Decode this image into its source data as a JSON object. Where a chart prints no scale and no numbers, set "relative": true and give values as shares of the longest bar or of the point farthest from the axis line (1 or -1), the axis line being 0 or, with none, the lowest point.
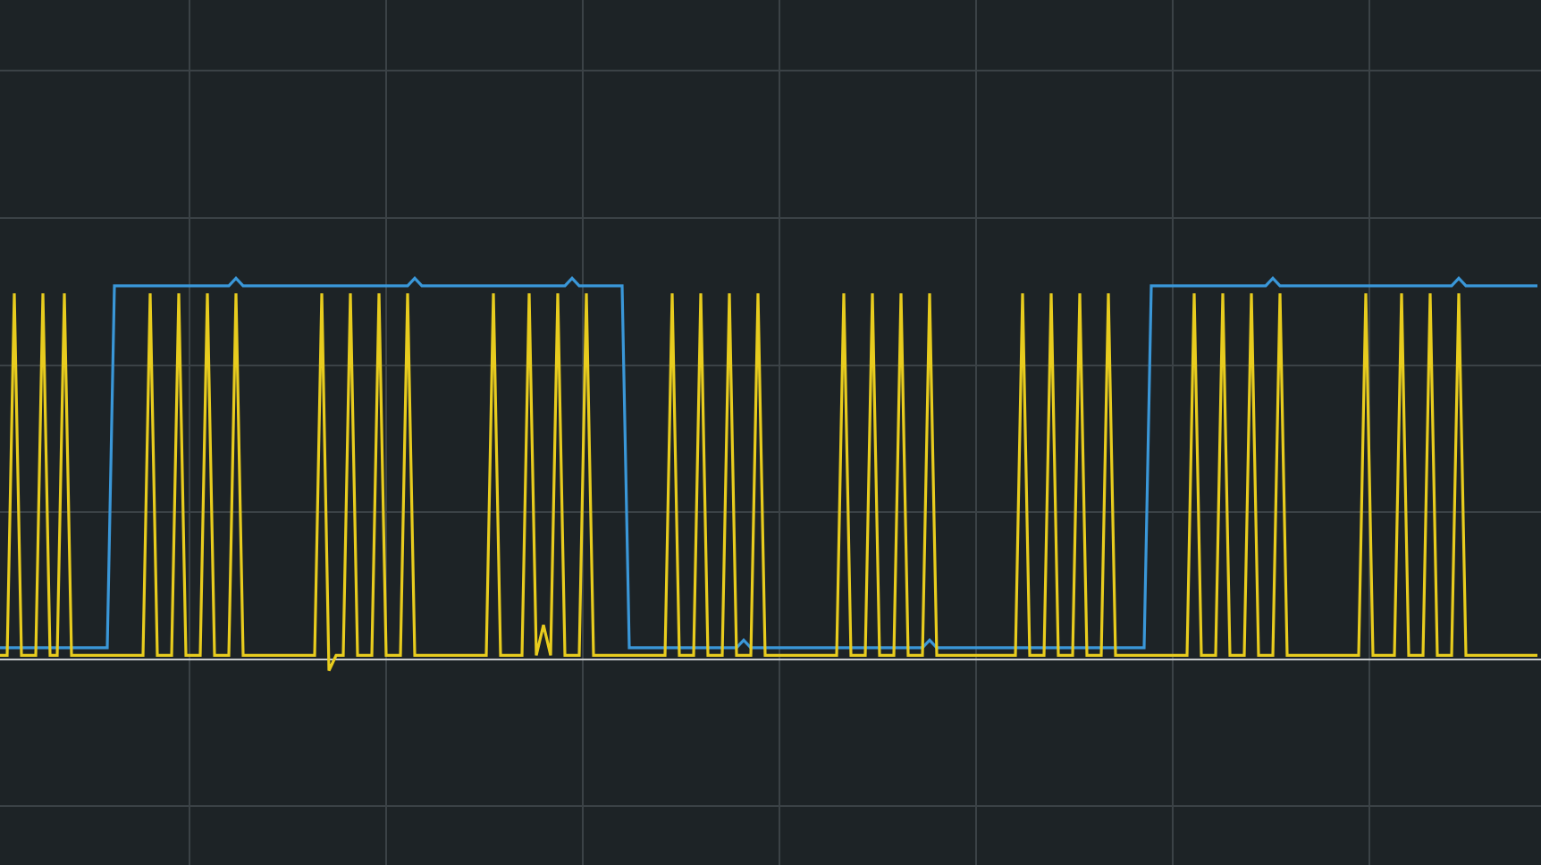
{
  "chart_data": {
    "type": "line",
    "relative": true,
    "grid": true,
    "tick_labels": false,
    "marker": "none",
    "line_style": "solid",
    "categories": [
      null,
      null,
      null,
      null,
      null,
      null,
      null,
      null,
      null,
      null,
      null,
      null,
      null,
      null,
      null,
      null,
      null,
      null,
      null,
      null,
      null,
      null,
      null,
      null,
      null,
      null,
      null,
      null,
      null,
      null,
      null,
      null,
      null,
      null,
      null,
      null,
      null,
      null,
      null,
      null,
      null,
      null,
      null,
      null,
      null,
      null,
      null,
      null,
      null,
      null,
      null,
      null,
      null,
      null,
      null,
      null,
      null,
      null,
      null,
      null,
      null,
      null,
      null,
      null,
      null,
      null,
      null,
      null,
      null,
      null,
      null,
      null,
      null,
      null,
      null,
      null,
      null,
      null,
      null,
      null,
      null,
      null,
      null,
      null,
      null,
      null,
      null,
      null,
      null,
      null,
      null,
      null,
      null,
      null,
      null,
      null,
      null,
      null,
      null,
      null,
      null,
      null,
      null,
      null,
      null,
      null,
      null,
      null,
      null,
      null,
      null,
      null,
      null,
      null,
      null,
      null,
      null,
      null,
      null,
      null,
      null,
      null,
      null,
      null,
      null,
      null,
      null,
      null,
      null,
      null,
      null,
      null,
      null,
      null,
      null,
      null,
      null,
      null,
      null,
      null,
      null,
      null,
      null,
      null,
      null,
      null,
      null,
      null,
      null,
      null,
      null,
      null,
      null,
      null,
      null,
      null,
      null,
      null,
      null,
      null,
      null,
      null,
      null,
      null,
      null,
      null,
      null,
      null,
      null,
      null,
      null,
      null,
      null,
      null,
      null,
      null,
      null,
      null,
      null,
      null,
      null,
      null,
      null,
      null,
      null,
      null,
      null,
      null,
      null,
      null,
      null,
      null,
      null,
      null,
      null,
      null,
      null,
      null,
      null,
      null,
      null,
      null,
      null,
      null,
      null,
      null,
      null,
      null,
      null,
      null,
      null,
      null,
      null,
      null,
      null,
      null
    ],
    "series": [
      {
        "color": "#3a97d8",
        "values": [
          0.03,
          0.03,
          0.03,
          0.03,
          0.03,
          0.03,
          0.03,
          0.03,
          0.03,
          0.03,
          0.03,
          0.03,
          0.03,
          0.03,
          0.03,
          0.03,
          0.98,
          0.98,
          0.98,
          0.98,
          0.98,
          0.98,
          0.98,
          0.98,
          0.98,
          0.98,
          0.98,
          0.98,
          0.98,
          0.98,
          0.98,
          0.98,
          0.98,
          1,
          0.98,
          0.98,
          0.98,
          0.98,
          0.98,
          0.98,
          0.98,
          0.98,
          0.98,
          0.98,
          0.98,
          0.98,
          0.98,
          0.98,
          0.98,
          0.98,
          0.98,
          0.98,
          0.98,
          0.98,
          0.98,
          0.98,
          0.98,
          0.98,
          1,
          0.98,
          0.98,
          0.98,
          0.98,
          0.98,
          0.98,
          0.98,
          0.98,
          0.98,
          0.98,
          0.98,
          0.98,
          0.98,
          0.98,
          0.98,
          0.98,
          0.98,
          0.98,
          0.98,
          0.98,
          0.98,
          1,
          0.98,
          0.98,
          0.98,
          0.98,
          0.98,
          0.98,
          0.98,
          0.03,
          0.03,
          0.03,
          0.03,
          0.03,
          0.03,
          0.03,
          0.03,
          0.03,
          0.03,
          0.03,
          0.03,
          0.03,
          0.03,
          0.03,
          0.03,
          0.05,
          0.03,
          0.03,
          0.03,
          0.03,
          0.03,
          0.03,
          0.03,
          0.03,
          0.03,
          0.03,
          0.03,
          0.03,
          0.03,
          0.03,
          0.03,
          0.03,
          0.03,
          0.03,
          0.03,
          0.03,
          0.03,
          0.03,
          0.03,
          0.03,
          0.03,
          0.05,
          0.03,
          0.03,
          0.03,
          0.03,
          0.03,
          0.03,
          0.03,
          0.03,
          0.03,
          0.03,
          0.03,
          0.03,
          0.03,
          0.03,
          0.03,
          0.03,
          0.03,
          0.03,
          0.03,
          0.03,
          0.03,
          0.03,
          0.03,
          0.03,
          0.03,
          0.03,
          0.03,
          0.03,
          0.03,
          0.03,
          0.98,
          0.98,
          0.98,
          0.98,
          0.98,
          0.98,
          0.98,
          0.98,
          0.98,
          0.98,
          0.98,
          0.98,
          0.98,
          0.98,
          0.98,
          0.98,
          0.98,
          1,
          0.98,
          0.98,
          0.98,
          0.98,
          0.98,
          0.98,
          0.98,
          0.98,
          0.98,
          0.98,
          0.98,
          0.98,
          0.98,
          0.98,
          0.98,
          0.98,
          0.98,
          0.98,
          0.98,
          0.98,
          0.98,
          0.98,
          0.98,
          0.98,
          0.98,
          1,
          0.98,
          0.98,
          0.98,
          0.98,
          0.98,
          0.98,
          0.98,
          0.98,
          0.98,
          0.98,
          0.98
        ]
      },
      {
        "color": "#e8cc1e",
        "values": [
          0.01,
          0.01,
          0.96,
          0.01,
          0.01,
          0.01,
          0.96,
          0.01,
          0.01,
          0.96,
          0.01,
          0.01,
          0.01,
          0.01,
          0.01,
          0.01,
          0.01,
          0.01,
          0.01,
          0.01,
          0.01,
          0.96,
          0.01,
          0.01,
          0.01,
          0.96,
          0.01,
          0.01,
          0.01,
          0.96,
          0.01,
          0.01,
          0.01,
          0.96,
          0.01,
          0.01,
          0.01,
          0.01,
          0.01,
          0.01,
          0.01,
          0.01,
          0.01,
          0.01,
          0.01,
          0.96,
          -0.03,
          0.01,
          0.01,
          0.96,
          0.01,
          0.01,
          0.01,
          0.96,
          0.01,
          0.01,
          0.01,
          0.96,
          0.01,
          0.01,
          0.01,
          0.01,
          0.01,
          0.01,
          0.01,
          0.01,
          0.01,
          0.01,
          0.01,
          0.96,
          0.01,
          0.01,
          0.01,
          0.01,
          0.96,
          0.01,
          0.09,
          0.01,
          0.96,
          0.01,
          0.01,
          0.01,
          0.96,
          0.01,
          0.01,
          0.01,
          0.01,
          0.01,
          0.01,
          0.01,
          0.01,
          0.01,
          0.01,
          0.01,
          0.96,
          0.01,
          0.01,
          0.01,
          0.96,
          0.01,
          0.01,
          0.01,
          0.96,
          0.01,
          0.01,
          0.01,
          0.96,
          0.01,
          0.01,
          0.01,
          0.01,
          0.01,
          0.01,
          0.01,
          0.01,
          0.01,
          0.01,
          0.01,
          0.96,
          0.01,
          0.01,
          0.01,
          0.96,
          0.01,
          0.01,
          0.01,
          0.96,
          0.01,
          0.01,
          0.01,
          0.96,
          0.01,
          0.01,
          0.01,
          0.01,
          0.01,
          0.01,
          0.01,
          0.01,
          0.01,
          0.01,
          0.01,
          0.01,
          0.96,
          0.01,
          0.01,
          0.01,
          0.96,
          0.01,
          0.01,
          0.01,
          0.96,
          0.01,
          0.01,
          0.01,
          0.96,
          0.01,
          0.01,
          0.01,
          0.01,
          0.01,
          0.01,
          0.01,
          0.01,
          0.01,
          0.01,
          0.01,
          0.96,
          0.01,
          0.01,
          0.01,
          0.96,
          0.01,
          0.01,
          0.01,
          0.96,
          0.01,
          0.01,
          0.01,
          0.96,
          0.01,
          0.01,
          0.01,
          0.01,
          0.01,
          0.01,
          0.01,
          0.01,
          0.01,
          0.01,
          0.01,
          0.96,
          0.01,
          0.01,
          0.01,
          0.01,
          0.96,
          0.01,
          0.01,
          0.01,
          0.96,
          0.01,
          0.01,
          0.01,
          0.96,
          0.01,
          0.01,
          0.01,
          0.01,
          0.01,
          0.01,
          0.01,
          0.01,
          0.01,
          0.01,
          0.01
        ]
      }
    ]
  }
}
